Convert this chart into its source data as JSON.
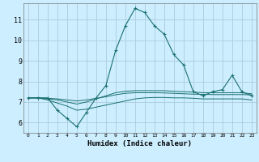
{
  "xlabel": "Humidex (Indice chaleur)",
  "ylabel": "",
  "bg_color": "#cceeff",
  "grid_color": "#aaccdd",
  "line_color": "#1a7070",
  "xlim": [
    -0.5,
    23.5
  ],
  "ylim": [
    5.5,
    11.8
  ],
  "yticks": [
    6,
    7,
    8,
    9,
    10,
    11
  ],
  "xticks": [
    0,
    1,
    2,
    3,
    4,
    5,
    6,
    7,
    8,
    9,
    10,
    11,
    12,
    13,
    14,
    15,
    16,
    17,
    18,
    19,
    20,
    21,
    22,
    23
  ],
  "series": [
    {
      "x": [
        0,
        1,
        2,
        3,
        4,
        5,
        6,
        7,
        8,
        9,
        10,
        11,
        12,
        13,
        14,
        15,
        16,
        17,
        18,
        19,
        20,
        21,
        22,
        23
      ],
      "y": [
        7.2,
        7.2,
        7.2,
        6.6,
        6.2,
        5.8,
        6.5,
        7.2,
        7.8,
        9.5,
        10.7,
        11.55,
        11.35,
        10.7,
        10.3,
        9.3,
        8.8,
        7.5,
        7.3,
        7.5,
        7.6,
        8.3,
        7.5,
        7.3
      ],
      "marker": true
    },
    {
      "x": [
        0,
        1,
        2,
        3,
        4,
        5,
        6,
        7,
        8,
        9,
        10,
        11,
        12,
        13,
        14,
        15,
        16,
        17,
        18,
        19,
        20,
        21,
        22,
        23
      ],
      "y": [
        7.2,
        7.2,
        7.15,
        7.1,
        7.0,
        6.9,
        7.0,
        7.15,
        7.3,
        7.45,
        7.52,
        7.55,
        7.55,
        7.55,
        7.55,
        7.52,
        7.5,
        7.48,
        7.45,
        7.45,
        7.45,
        7.45,
        7.45,
        7.4
      ],
      "marker": false
    },
    {
      "x": [
        0,
        1,
        2,
        3,
        4,
        5,
        6,
        7,
        8,
        9,
        10,
        11,
        12,
        13,
        14,
        15,
        16,
        17,
        18,
        19,
        20,
        21,
        22,
        23
      ],
      "y": [
        7.2,
        7.2,
        7.1,
        6.95,
        6.8,
        6.6,
        6.65,
        6.75,
        6.85,
        6.95,
        7.05,
        7.15,
        7.2,
        7.22,
        7.22,
        7.2,
        7.2,
        7.18,
        7.15,
        7.15,
        7.15,
        7.15,
        7.15,
        7.1
      ],
      "marker": false
    },
    {
      "x": [
        0,
        1,
        2,
        3,
        4,
        5,
        6,
        7,
        8,
        9,
        10,
        11,
        12,
        13,
        14,
        15,
        16,
        17,
        18,
        19,
        20,
        21,
        22,
        23
      ],
      "y": [
        7.2,
        7.2,
        7.18,
        7.15,
        7.1,
        7.05,
        7.1,
        7.18,
        7.25,
        7.35,
        7.42,
        7.45,
        7.45,
        7.45,
        7.44,
        7.42,
        7.4,
        7.38,
        7.37,
        7.36,
        7.36,
        7.36,
        7.36,
        7.35
      ],
      "marker": false
    }
  ]
}
